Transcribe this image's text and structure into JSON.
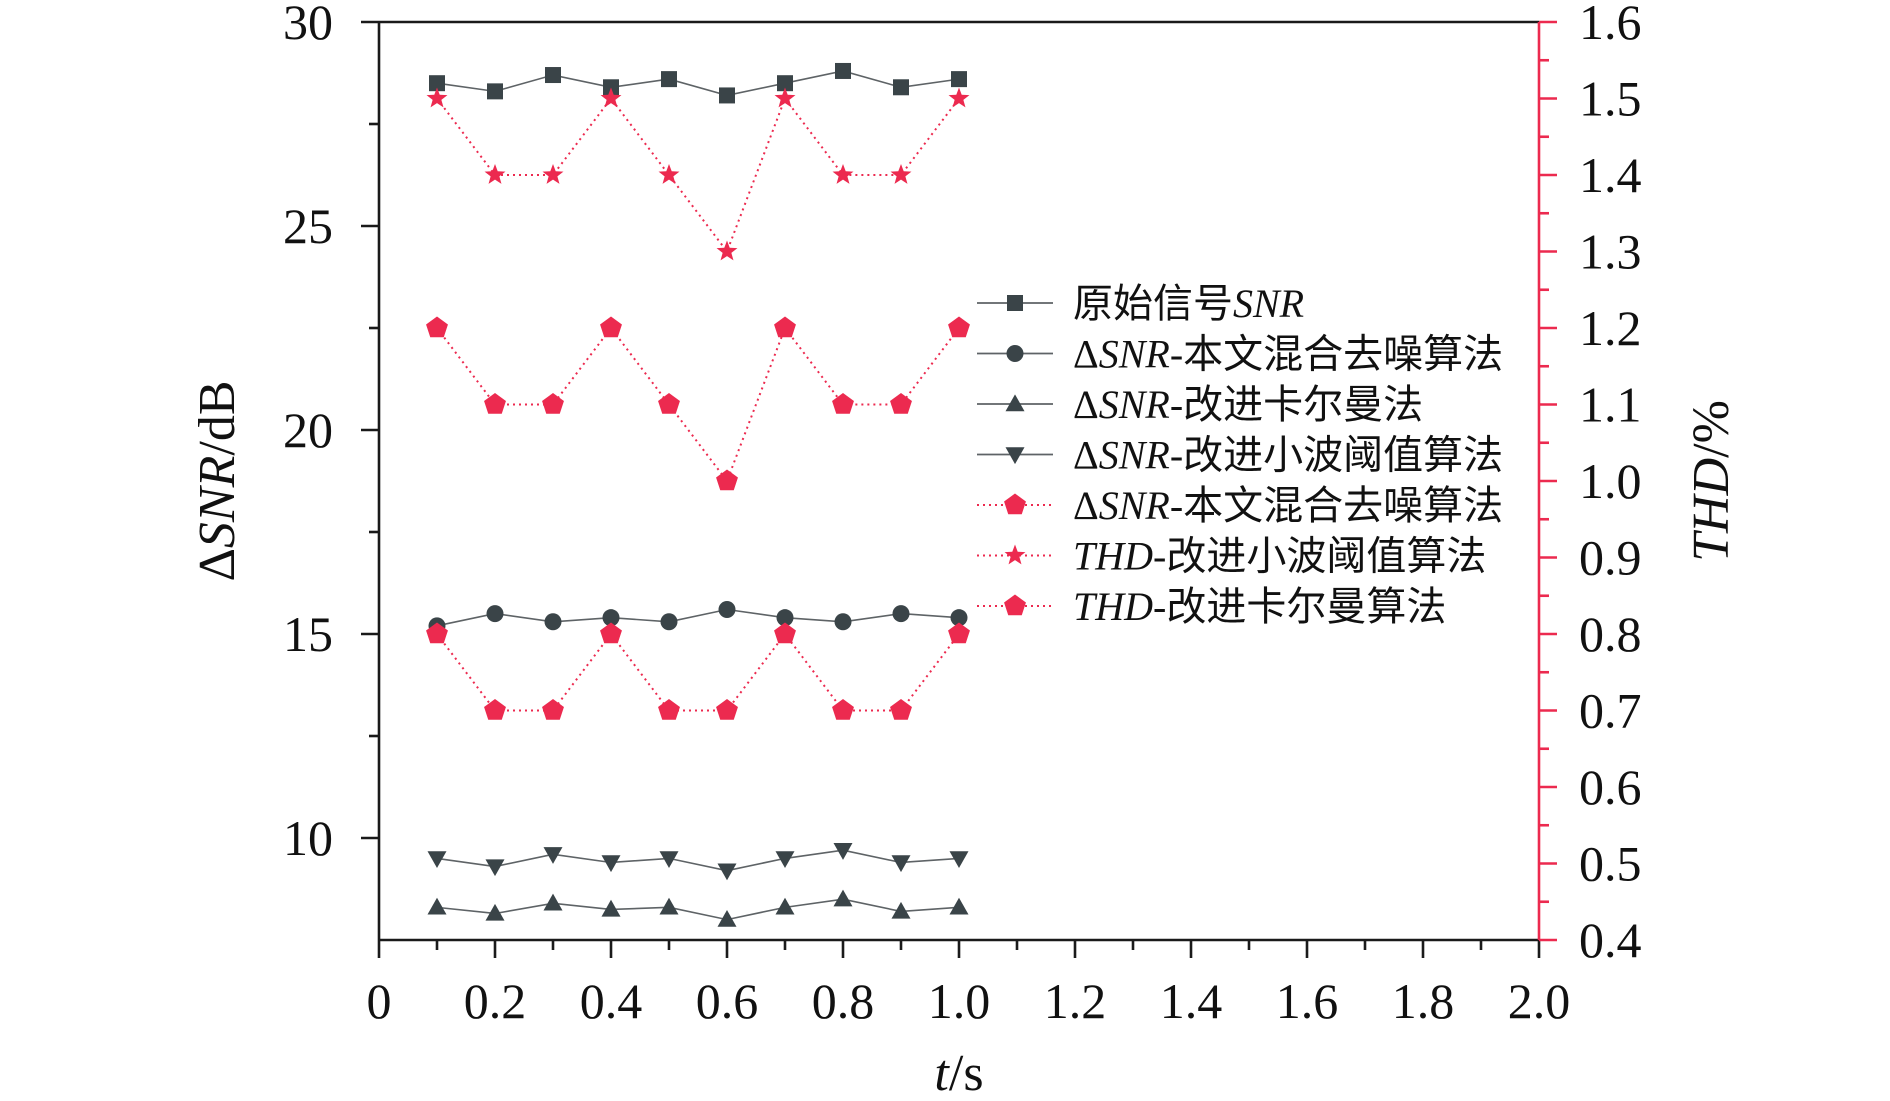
{
  "chart_data": {
    "type": "line",
    "x": [
      0.1,
      0.2,
      0.3,
      0.4,
      0.5,
      0.6,
      0.7,
      0.8,
      0.9,
      1.0
    ],
    "xlabel": "t/s",
    "ylabel": "ΔSNR/dB",
    "y2label": "THD/%",
    "xlim": [
      0,
      2.0
    ],
    "ylim": [
      7.5,
      30
    ],
    "y2lim": [
      0.4,
      1.6
    ],
    "xticks": {
      "values": [
        0,
        0.2,
        0.4,
        0.6,
        0.8,
        1.0,
        1.2,
        1.4,
        1.6,
        1.8,
        2.0
      ],
      "labels": [
        "0",
        "0.2",
        "0.4",
        "0.6",
        "0.8",
        "1.0",
        "1.2",
        "1.4",
        "1.6",
        "1.8",
        "2.0"
      ]
    },
    "yticks": {
      "values": [
        10,
        15,
        20,
        25,
        30
      ],
      "labels": [
        "10",
        "15",
        "20",
        "25",
        "30"
      ]
    },
    "y2ticks": {
      "values": [
        0.4,
        0.5,
        0.6,
        0.7,
        0.8,
        0.9,
        1.0,
        1.1,
        1.2,
        1.3,
        1.4,
        1.5,
        1.6
      ],
      "labels": [
        "0.4",
        "0.5",
        "0.6",
        "0.7",
        "0.8",
        "0.9",
        "1.0",
        "1.1",
        "1.2",
        "1.3",
        "1.4",
        "1.5",
        "1.6"
      ]
    },
    "grid": false,
    "legend_position": "center-right",
    "colors": {
      "dark": "#3a4448",
      "dark_line": "#5e6366",
      "red": "#ec2a4f",
      "axis": "#1a1a1a"
    },
    "series": [
      {
        "name": "原始信号SNR",
        "axis": "left",
        "marker": "square",
        "style": "solid",
        "color": "dark",
        "values": [
          28.5,
          28.3,
          28.7,
          28.4,
          28.6,
          28.2,
          28.5,
          28.8,
          28.4,
          28.6
        ]
      },
      {
        "name": "ΔSNR-本文混合去噪算法",
        "axis": "left",
        "marker": "circle",
        "style": "solid",
        "color": "dark",
        "values": [
          15.2,
          15.5,
          15.3,
          15.4,
          15.3,
          15.6,
          15.4,
          15.3,
          15.5,
          15.4
        ]
      },
      {
        "name": "ΔSNR-改进卡尔曼法",
        "axis": "left",
        "marker": "triangle-up",
        "style": "solid",
        "color": "dark",
        "values": [
          8.3,
          8.15,
          8.4,
          8.25,
          8.3,
          8.0,
          8.3,
          8.5,
          8.2,
          8.3
        ]
      },
      {
        "name": "ΔSNR-改进小波阈值算法",
        "axis": "left",
        "marker": "triangle-down",
        "style": "solid",
        "color": "dark",
        "values": [
          9.5,
          9.3,
          9.6,
          9.4,
          9.5,
          9.2,
          9.5,
          9.7,
          9.4,
          9.5
        ]
      },
      {
        "name": "ΔSNR-本文混合去噪算法",
        "axis": "right",
        "marker": "pentagon",
        "style": "dotted",
        "color": "red",
        "values": [
          0.8,
          0.7,
          0.7,
          0.8,
          0.7,
          0.7,
          0.8,
          0.7,
          0.7,
          0.8
        ]
      },
      {
        "name": "THD-改进小波阈值算法",
        "axis": "right",
        "marker": "star",
        "style": "dotted",
        "color": "red",
        "values": [
          1.5,
          1.4,
          1.4,
          1.5,
          1.4,
          1.3,
          1.5,
          1.4,
          1.4,
          1.5
        ]
      },
      {
        "name": "THD-改进卡尔曼算法",
        "axis": "right",
        "marker": "pentagon",
        "style": "dotted",
        "color": "red",
        "values": [
          1.2,
          1.1,
          1.1,
          1.2,
          1.1,
          1.0,
          1.2,
          1.1,
          1.1,
          1.2
        ]
      }
    ]
  }
}
